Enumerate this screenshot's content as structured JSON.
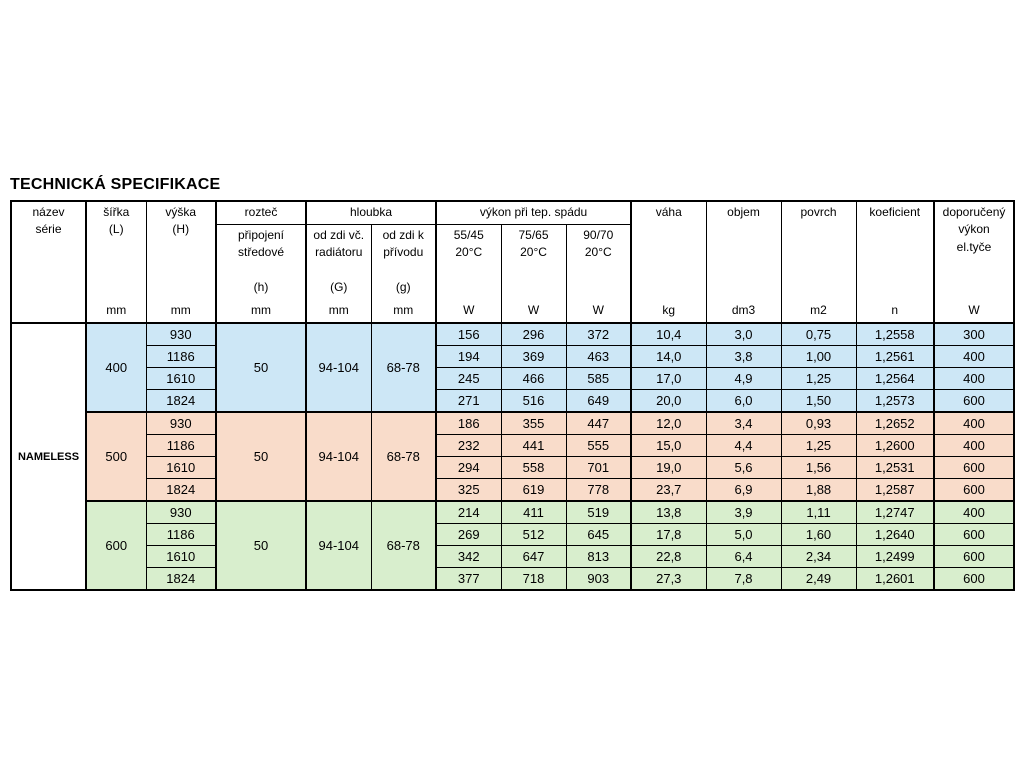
{
  "title": "TECHNICKÁ SPECIFIKACE",
  "table": {
    "series": "NAMELESS",
    "header": {
      "series": [
        "název",
        "série"
      ],
      "width": [
        "šířka",
        "(L)"
      ],
      "height": [
        "výška",
        "(H)"
      ],
      "pitch": "rozteč",
      "pitch_sub": [
        "připojení",
        "středové",
        "",
        "(h)"
      ],
      "depth": "hloubka",
      "depth_sub1": [
        "od zdi  vč.",
        "radiátoru",
        "",
        "(G)"
      ],
      "depth_sub2": [
        "od zdi  k",
        "přívodu",
        "",
        "(g)"
      ],
      "power": "výkon při tep.  spádu",
      "power_subs": [
        [
          "55/45",
          "20°C"
        ],
        [
          "75/65",
          "20°C"
        ],
        [
          "90/70",
          "20°C"
        ]
      ],
      "weight": "váha",
      "volume": "objem",
      "surface": "povrch",
      "coefficient": "koeficient",
      "recommended": [
        "doporučený",
        "výkon",
        "el.tyče"
      ],
      "units": [
        "mm",
        "mm",
        "mm",
        "mm",
        "mm",
        "W",
        "W",
        "W",
        "kg",
        "dm3",
        "m2",
        "n",
        "W"
      ]
    },
    "groups": [
      {
        "width": "400",
        "pitch": "50",
        "depth_radiator": "94-104",
        "depth_supply": "68-78",
        "color": "#cde7f6",
        "rows": [
          {
            "height": "930",
            "p5545": "156",
            "p7565": "296",
            "p9070": "372",
            "weight": "10,4",
            "volume": "3,0",
            "surface": "0,75",
            "coeff": "1,2558",
            "rec": "300"
          },
          {
            "height": "1186",
            "p5545": "194",
            "p7565": "369",
            "p9070": "463",
            "weight": "14,0",
            "volume": "3,8",
            "surface": "1,00",
            "coeff": "1,2561",
            "rec": "400"
          },
          {
            "height": "1610",
            "p5545": "245",
            "p7565": "466",
            "p9070": "585",
            "weight": "17,0",
            "volume": "4,9",
            "surface": "1,25",
            "coeff": "1,2564",
            "rec": "400"
          },
          {
            "height": "1824",
            "p5545": "271",
            "p7565": "516",
            "p9070": "649",
            "weight": "20,0",
            "volume": "6,0",
            "surface": "1,50",
            "coeff": "1,2573",
            "rec": "600"
          }
        ]
      },
      {
        "width": "500",
        "pitch": "50",
        "depth_radiator": "94-104",
        "depth_supply": "68-78",
        "color": "#f9dcca",
        "rows": [
          {
            "height": "930",
            "p5545": "186",
            "p7565": "355",
            "p9070": "447",
            "weight": "12,0",
            "volume": "3,4",
            "surface": "0,93",
            "coeff": "1,2652",
            "rec": "400"
          },
          {
            "height": "1186",
            "p5545": "232",
            "p7565": "441",
            "p9070": "555",
            "weight": "15,0",
            "volume": "4,4",
            "surface": "1,25",
            "coeff": "1,2600",
            "rec": "400"
          },
          {
            "height": "1610",
            "p5545": "294",
            "p7565": "558",
            "p9070": "701",
            "weight": "19,0",
            "volume": "5,6",
            "surface": "1,56",
            "coeff": "1,2531",
            "rec": "600"
          },
          {
            "height": "1824",
            "p5545": "325",
            "p7565": "619",
            "p9070": "778",
            "weight": "23,7",
            "volume": "6,9",
            "surface": "1,88",
            "coeff": "1,2587",
            "rec": "600"
          }
        ]
      },
      {
        "width": "600",
        "pitch": "50",
        "depth_radiator": "94-104",
        "depth_supply": "68-78",
        "color": "#d8eecd",
        "rows": [
          {
            "height": "930",
            "p5545": "214",
            "p7565": "411",
            "p9070": "519",
            "weight": "13,8",
            "volume": "3,9",
            "surface": "1,11",
            "coeff": "1,2747",
            "rec": "400"
          },
          {
            "height": "1186",
            "p5545": "269",
            "p7565": "512",
            "p9070": "645",
            "weight": "17,8",
            "volume": "5,0",
            "surface": "1,60",
            "coeff": "1,2640",
            "rec": "600"
          },
          {
            "height": "1610",
            "p5545": "342",
            "p7565": "647",
            "p9070": "813",
            "weight": "22,8",
            "volume": "6,4",
            "surface": "2,34",
            "coeff": "1,2499",
            "rec": "600"
          },
          {
            "height": "1824",
            "p5545": "377",
            "p7565": "718",
            "p9070": "903",
            "weight": "27,3",
            "volume": "7,8",
            "surface": "2,49",
            "coeff": "1,2601",
            "rec": "600"
          }
        ]
      }
    ]
  }
}
